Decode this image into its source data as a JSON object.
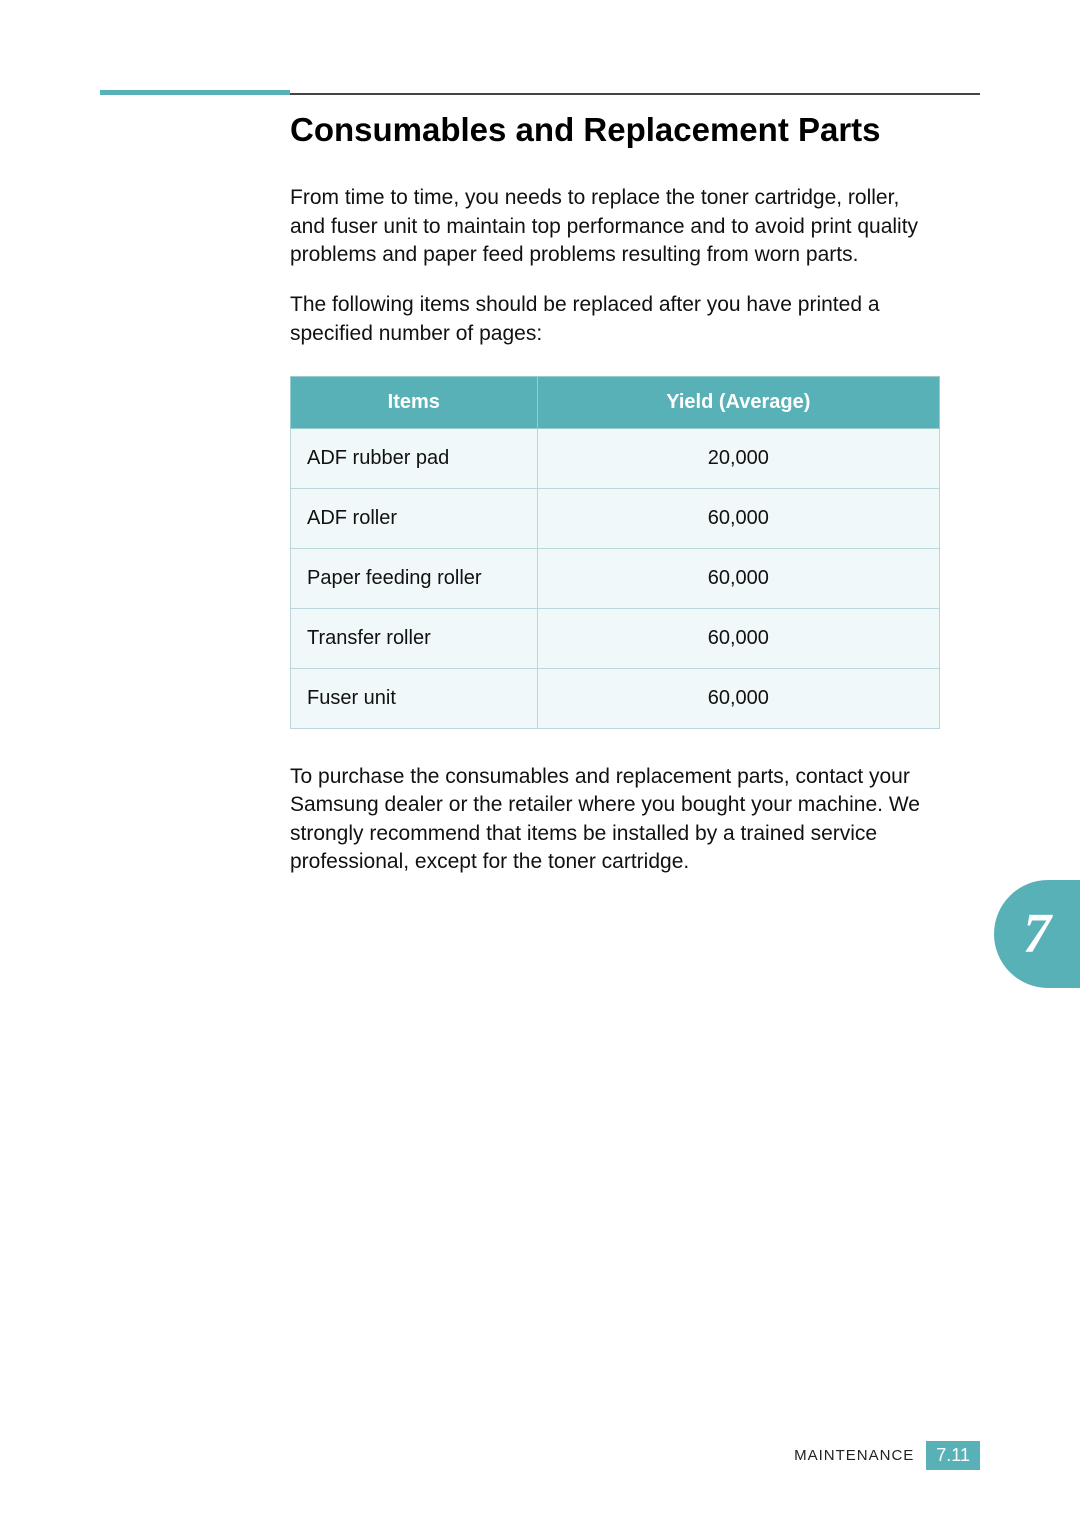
{
  "page": {
    "accent_color": "#59b1b8",
    "background_color": "#ffffff",
    "text_color": "#111111",
    "table_row_bg": "#f0f8fa",
    "table_border": "#bcd7db"
  },
  "title": "Consumables and Replacement Parts",
  "paragraphs": {
    "p1": "From time to time, you needs to replace the toner cartridge, roller, and fuser unit to maintain top performance and to avoid print quality problems and paper feed problems resulting from worn parts.",
    "p2": "The following items should be replaced after you have printed a specified number of pages:",
    "p3": "To purchase the consumables and replacement parts, contact your Samsung dealer or the retailer where you bought your machine. We strongly recommend that items be installed by a trained service professional, except for the toner cartridge."
  },
  "table": {
    "columns": [
      "Items",
      "Yield (Average)"
    ],
    "rows": [
      [
        "ADF rubber pad",
        "20,000"
      ],
      [
        "ADF roller",
        "60,000"
      ],
      [
        "Paper feeding roller",
        "60,000"
      ],
      [
        "Transfer roller",
        "60,000"
      ],
      [
        "Fuser unit",
        "60,000"
      ]
    ],
    "header_bg": "#59b1b8",
    "header_fg": "#ffffff",
    "header_fontsize": 20,
    "cell_fontsize": 20
  },
  "chapter_tab": {
    "number": "7",
    "bg": "#59b1b8",
    "fg": "#ffffff"
  },
  "footer": {
    "section_label": "MAINTENANCE",
    "page_number": "7.11",
    "badge_bg": "#59b1b8",
    "badge_fg": "#ffffff"
  }
}
